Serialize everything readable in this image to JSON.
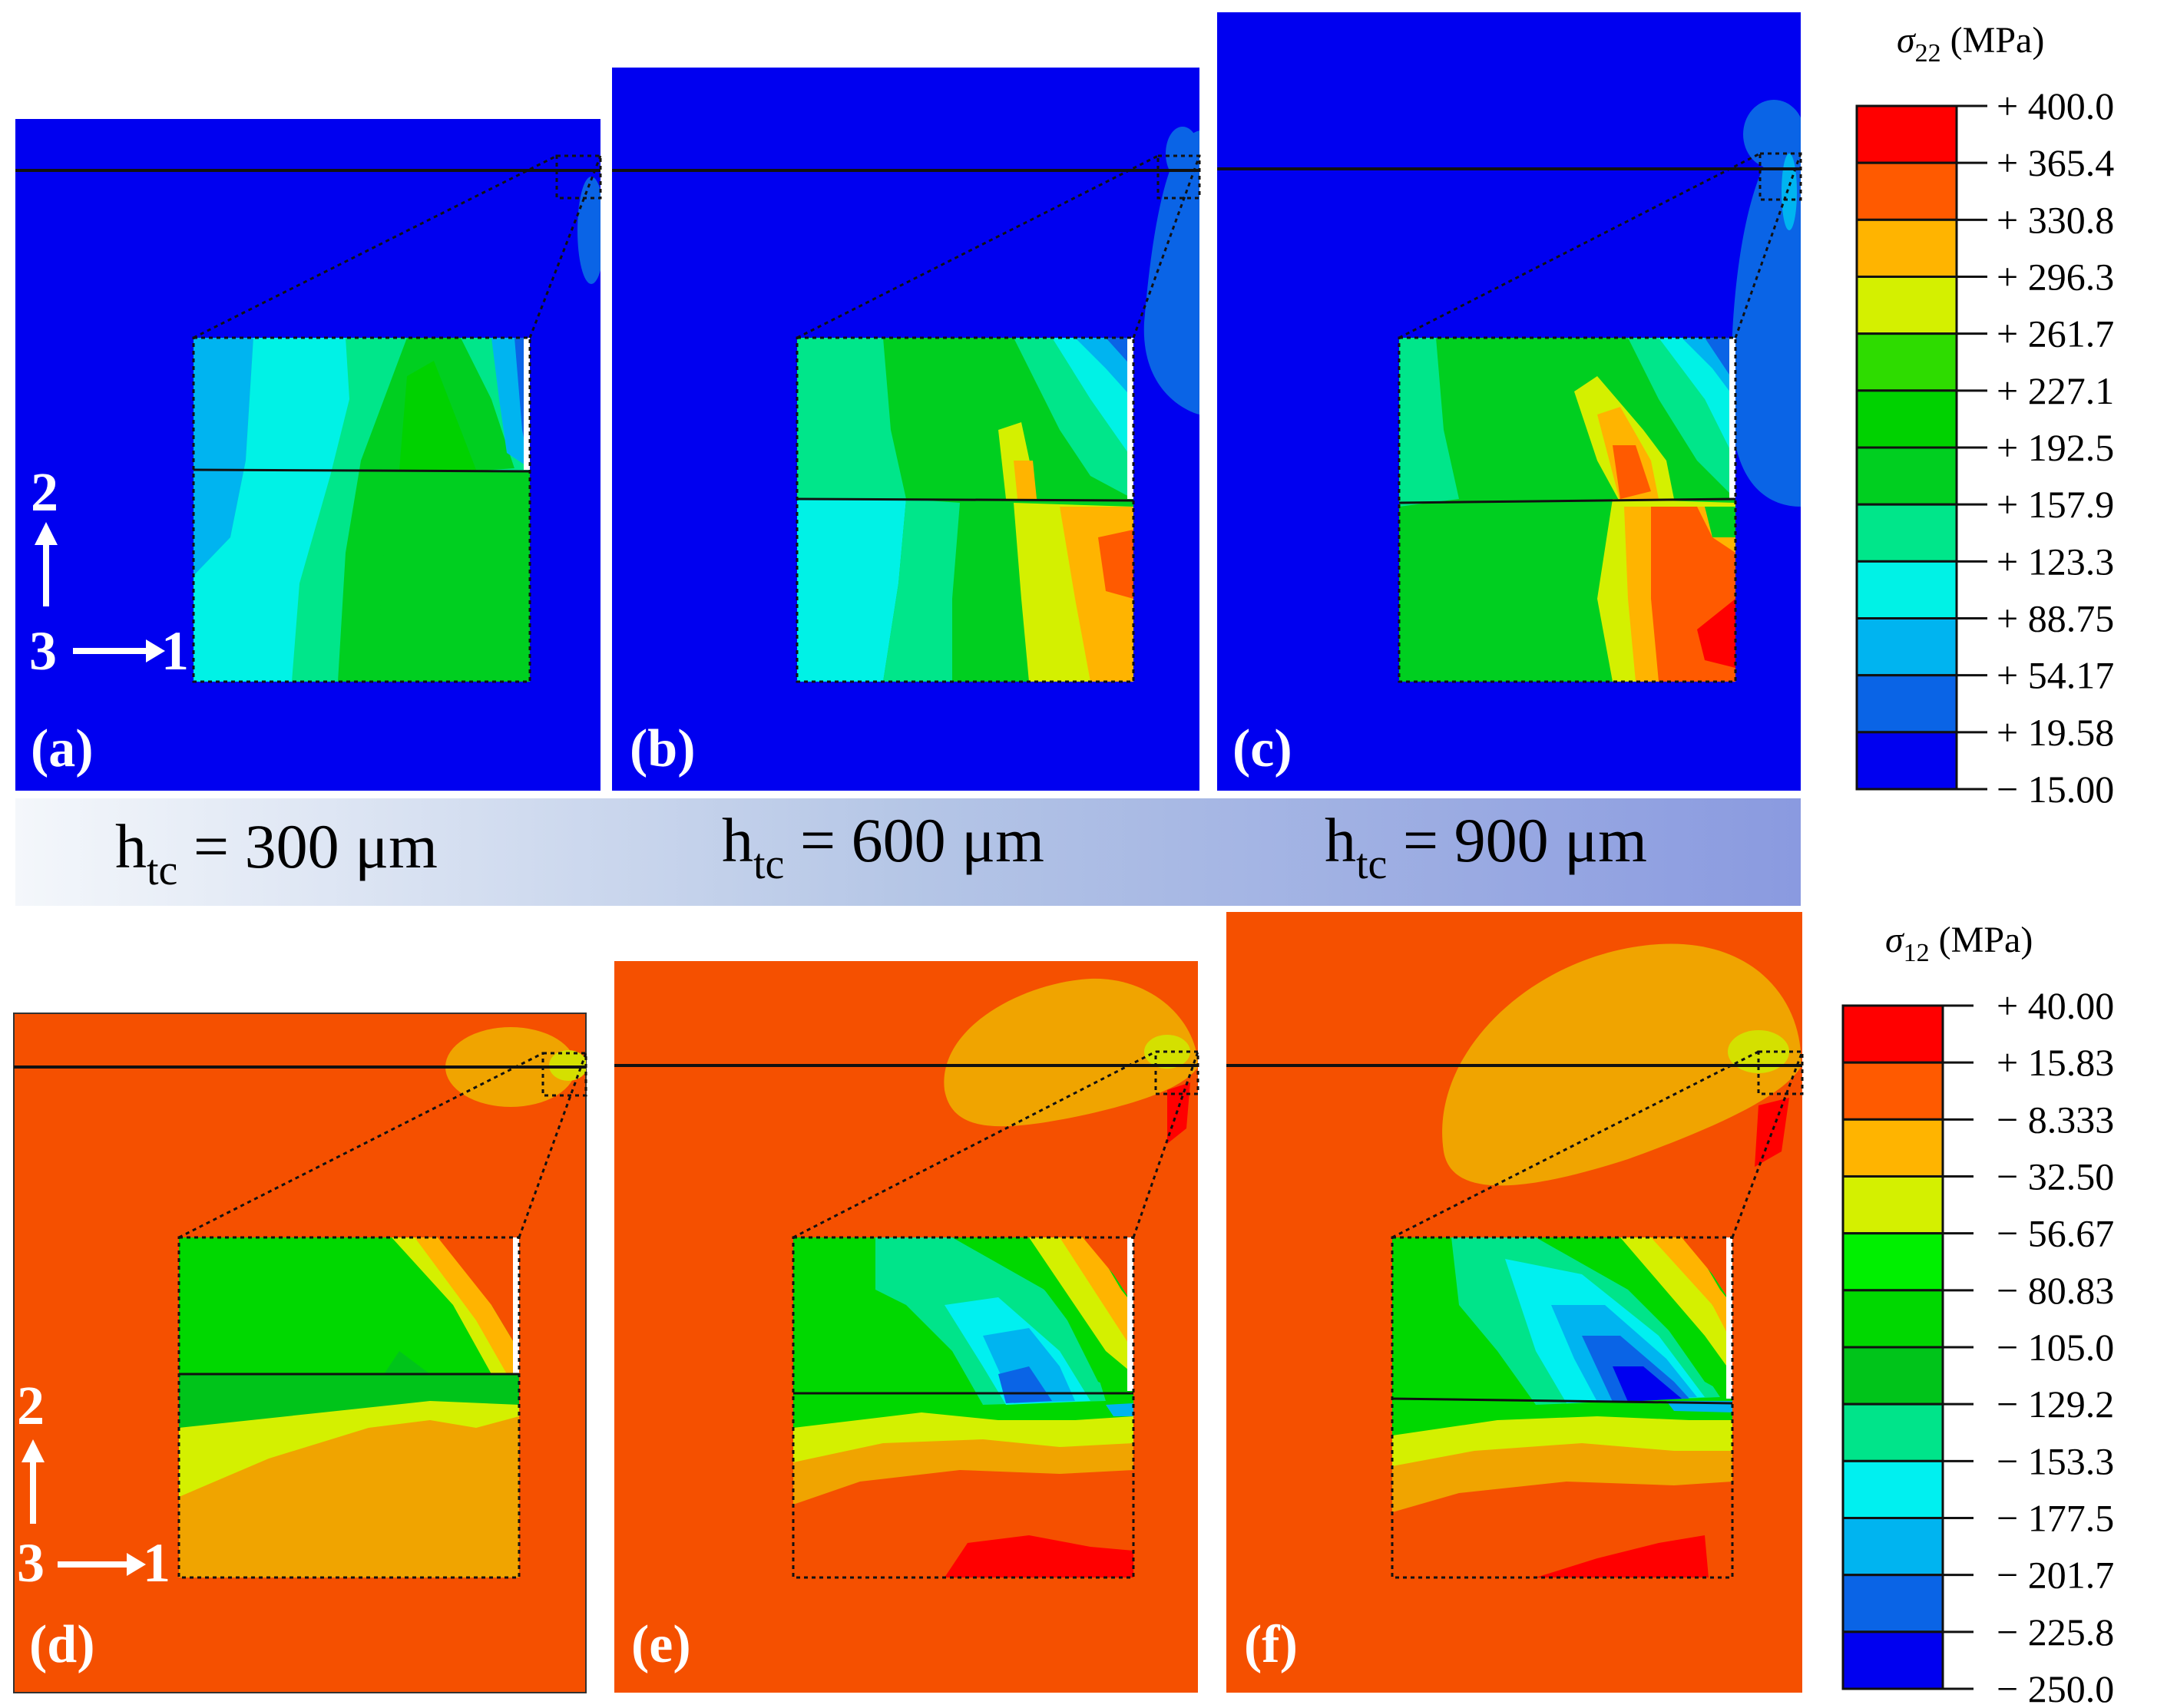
{
  "panels": [
    {
      "label": "(a)",
      "field": "sigma22"
    },
    {
      "label": "(b)",
      "field": "sigma22"
    },
    {
      "label": "(c)",
      "field": "sigma22"
    },
    {
      "label": "(d)",
      "field": "sigma12"
    },
    {
      "label": "(e)",
      "field": "sigma12"
    },
    {
      "label": "(f)",
      "field": "sigma12"
    }
  ],
  "axes": {
    "two": "2",
    "three": "3",
    "one": "1"
  },
  "htc_labels": [
    {
      "h": "h",
      "sub": "tc",
      "value": " = 300 μm"
    },
    {
      "h": "h",
      "sub": "tc",
      "value": " = 600 μm"
    },
    {
      "h": "h",
      "sub": "tc",
      "value": " = 900 μm"
    }
  ],
  "legend_s22": {
    "symbol": "σ",
    "subscript": "22",
    "unit": " (MPa)",
    "ticks": [
      "+ 400.0",
      "+ 365.4",
      "+ 330.8",
      "+ 296.3",
      "+ 261.7",
      "+ 227.1",
      "+ 192.5",
      "+ 157.9",
      "+ 123.3",
      "+ 88.75",
      "+ 54.17",
      "+ 19.58",
      "− 15.00"
    ],
    "colors": [
      "#ff0000",
      "#ff5a00",
      "#ffb400",
      "#d4f000",
      "#2edc00",
      "#00d200",
      "#00cf20",
      "#00e68a",
      "#00f2e6",
      "#00b4f0",
      "#0a64e6",
      "#0000f0"
    ]
  },
  "legend_s12": {
    "symbol": "σ",
    "subscript": "12",
    "unit": " (MPa)",
    "ticks": [
      "+ 40.00",
      "+ 15.83",
      "− 8.333",
      "− 32.50",
      "− 56.67",
      "− 80.83",
      "− 105.0",
      "− 129.2",
      "− 153.3",
      "− 177.5",
      "− 201.7",
      "− 225.8",
      "− 250.0"
    ],
    "colors": [
      "#ff0000",
      "#ff5a00",
      "#ffb400",
      "#d4f000",
      "#00f000",
      "#00d800",
      "#00c41a",
      "#00e48a",
      "#00f0f0",
      "#00b4f0",
      "#0a64e6",
      "#0000f0"
    ]
  },
  "colors": {
    "s22_background": "#0000f0",
    "s12_background": "#f55000",
    "htc_bar_start": "#f4f7fb",
    "htc_bar_end": "#8a9ae0"
  }
}
